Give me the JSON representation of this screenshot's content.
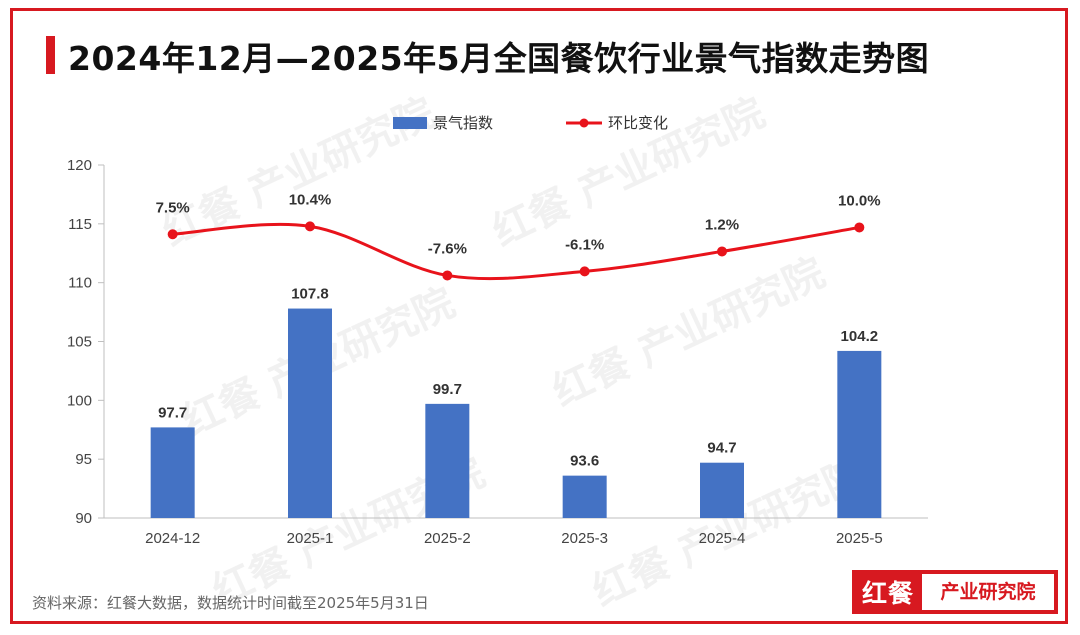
{
  "title": "2024年12月—2025年5月全国餐饮行业景气指数走势图",
  "source": "资料来源：红餐大数据，数据统计时间截至2025年5月31日",
  "logo": {
    "mark": "红餐",
    "text": "产业研究院"
  },
  "watermark": "红餐 产业研究院",
  "colors": {
    "accent": "#d71920",
    "bar": "#4472c4",
    "line": "#e8131b"
  },
  "chart_data": {
    "type": "bar",
    "categories": [
      "2024-12",
      "2025-1",
      "2025-2",
      "2025-3",
      "2025-4",
      "2025-5"
    ],
    "series": [
      {
        "name": "景气指数",
        "type": "bar",
        "values": [
          97.7,
          107.8,
          99.7,
          93.6,
          94.7,
          104.2
        ],
        "labels": [
          "97.7",
          "107.8",
          "99.7",
          "93.6",
          "94.7",
          "104.2"
        ]
      },
      {
        "name": "环比变化",
        "type": "line",
        "values": [
          7.5,
          10.4,
          -7.6,
          -6.1,
          1.2,
          10.0
        ],
        "labels": [
          "7.5%",
          "10.4%",
          "-7.6%",
          "-6.1%",
          "1.2%",
          "10.0%"
        ]
      }
    ],
    "ylim": [
      90,
      120
    ],
    "yticks": [
      "90",
      "95",
      "100",
      "105",
      "110",
      "115",
      "120"
    ],
    "legend": "top-center",
    "grid": false
  }
}
